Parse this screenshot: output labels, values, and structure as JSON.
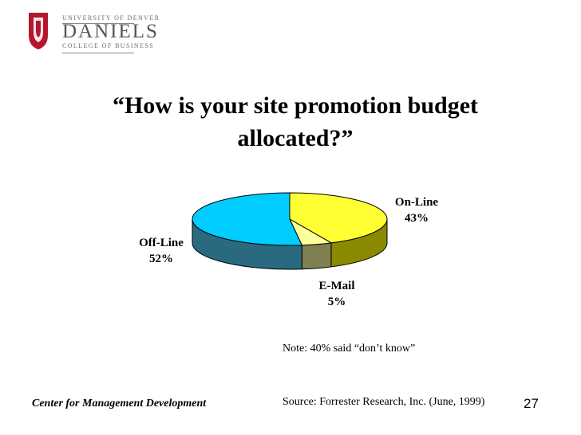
{
  "logo": {
    "university": "UNIVERSITY OF DENVER",
    "name": "DANIELS",
    "college": "COLLEGE OF BUSINESS",
    "accent_color": "#b5162b"
  },
  "title_line1": "“How is your site promotion budget",
  "title_line2": "allocated?”",
  "chart_data": {
    "type": "pie",
    "style": "3d",
    "categories": [
      "On-Line",
      "E-Mail",
      "Off-Line"
    ],
    "values": [
      43,
      5,
      52
    ],
    "value_labels": [
      "43%",
      "5%",
      "52%"
    ],
    "colors": {
      "top": [
        "#ffff33",
        "#ffff99",
        "#00ccff"
      ],
      "side": [
        "#8a8a00",
        "#7f7f52",
        "#2a6a80"
      ]
    }
  },
  "note": "Note: 40% said “don’t know”",
  "footer": {
    "left": "Center for Management Development",
    "source": "Source: Forrester Research, Inc. (June, 1999)",
    "page": "27"
  }
}
